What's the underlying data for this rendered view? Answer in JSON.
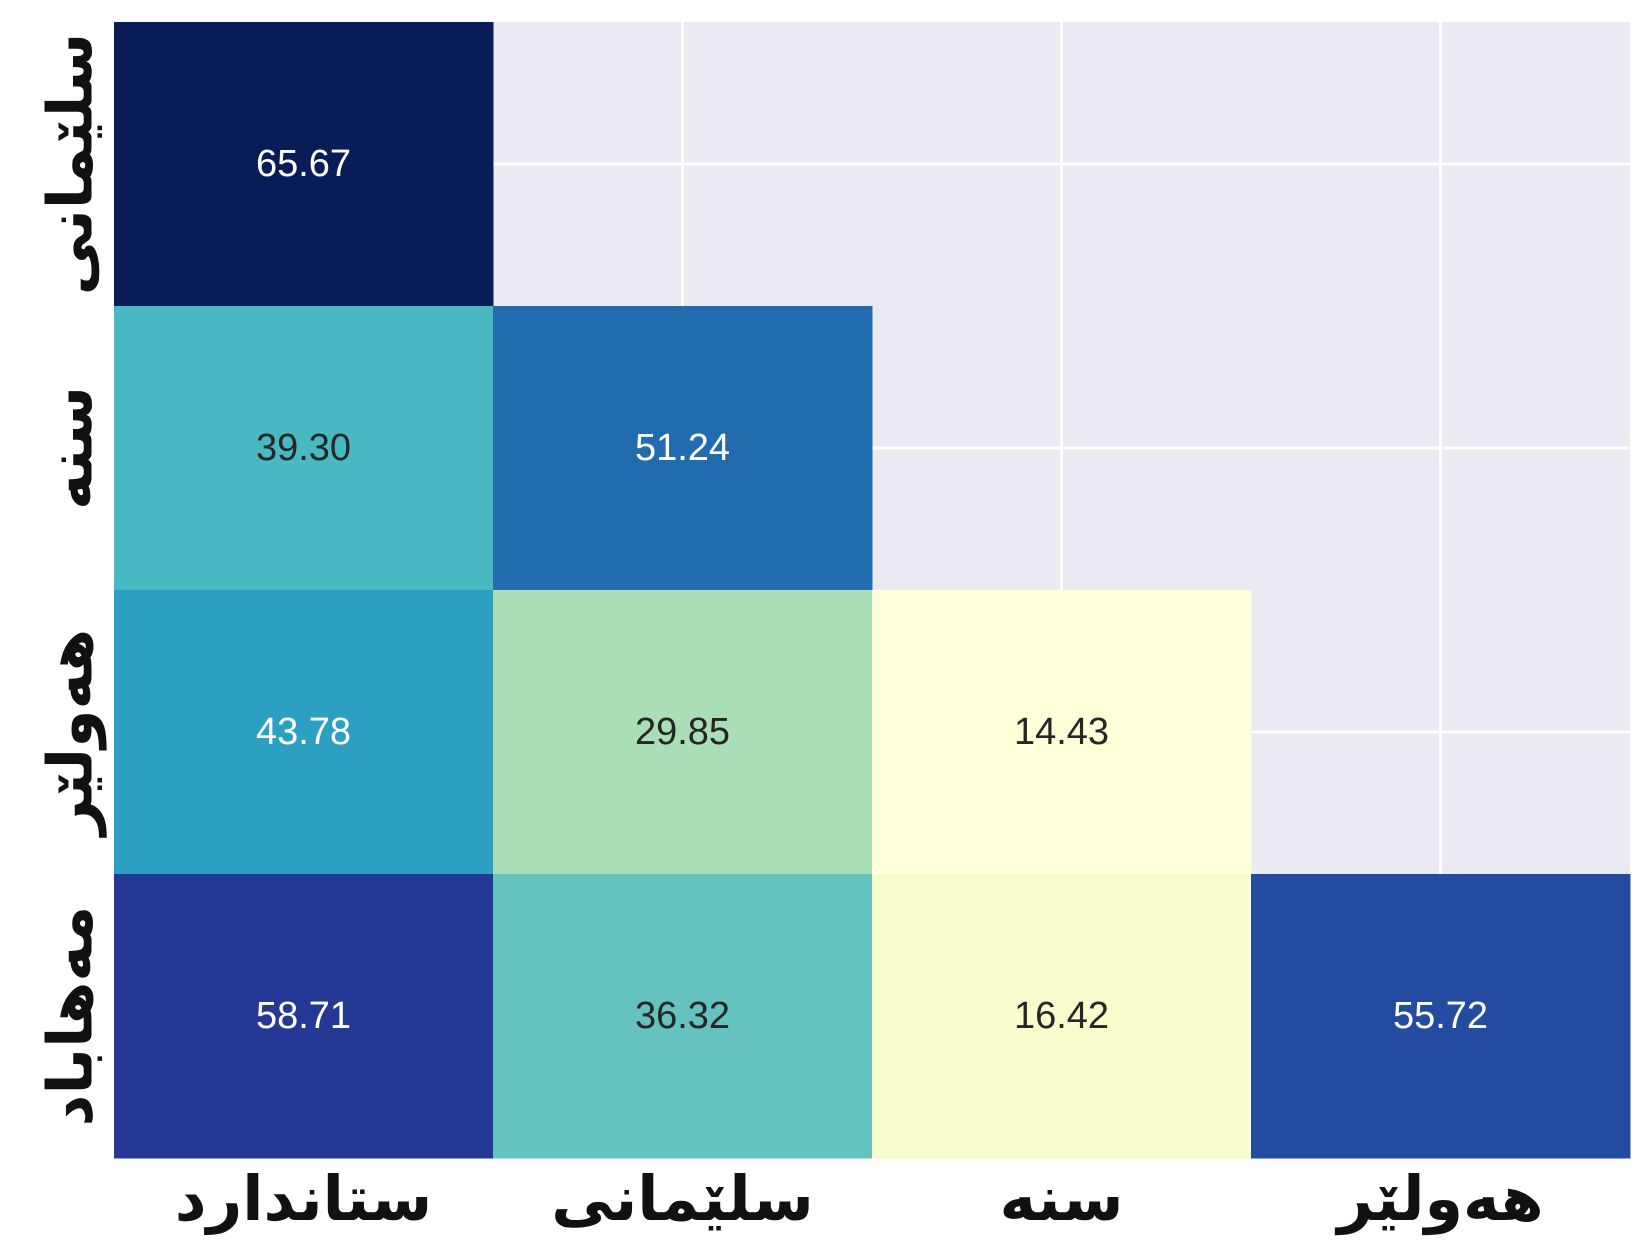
{
  "chart_data": {
    "type": "heatmap",
    "title": "",
    "xlabel": "",
    "ylabel": "",
    "x_categories": [
      "ستاندارد",
      "سلێمانی",
      "سنە",
      "هەولێر"
    ],
    "y_categories": [
      "سلێمانی",
      "سنە",
      "هەولێر",
      "مەهاباد"
    ],
    "values": [
      [
        65.67,
        null,
        null,
        null
      ],
      [
        39.3,
        51.24,
        null,
        null
      ],
      [
        43.78,
        29.85,
        14.43,
        null
      ],
      [
        58.71,
        36.32,
        16.42,
        55.72
      ]
    ],
    "value_labels": [
      [
        "65.67",
        "",
        "",
        ""
      ],
      [
        "39.30",
        "51.24",
        "",
        ""
      ],
      [
        "43.78",
        "29.85",
        "14.43",
        ""
      ],
      [
        "58.71",
        "36.32",
        "16.42",
        "55.72"
      ]
    ],
    "mask": "upper-triangle",
    "colormap": "YlGnBu",
    "grid": true,
    "colors": {
      "background": "#eaeaf2",
      "grid": "#ffffff",
      "text_dark": "#262626",
      "text_light": "#ffffff"
    }
  }
}
